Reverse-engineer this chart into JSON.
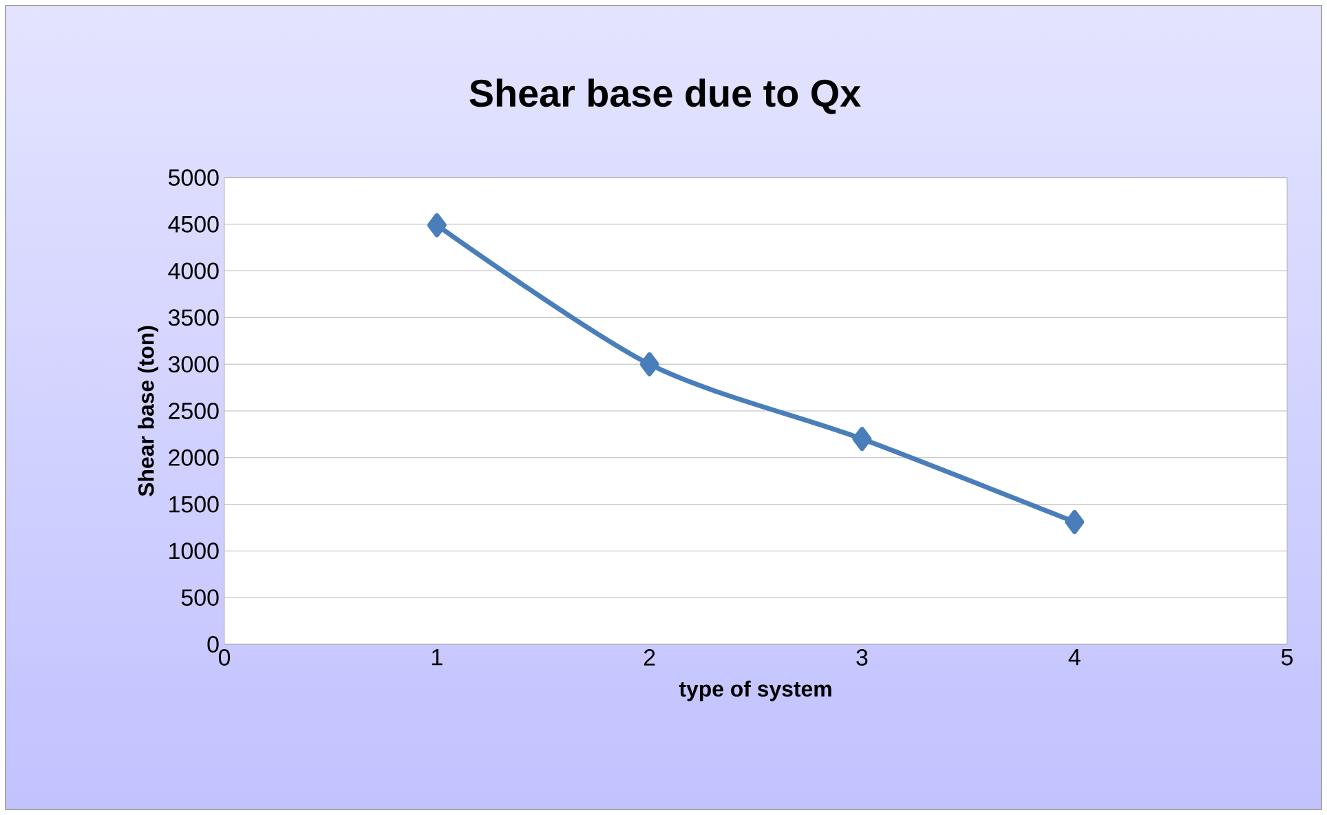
{
  "chart_data": {
    "type": "line",
    "title": "Shear base due to Qx",
    "xlabel": "type of system",
    "ylabel": "Shear base (ton)",
    "x": [
      1,
      2,
      3,
      4
    ],
    "series": [
      {
        "color": "#4a7ebb",
        "values": [
          4490,
          3000,
          2200,
          1310
        ]
      }
    ],
    "xlim": [
      0,
      5
    ],
    "xticks": [
      0,
      1,
      2,
      3,
      4,
      5
    ],
    "ylim": [
      0,
      5000
    ],
    "yticks": [
      0,
      500,
      1000,
      1500,
      2000,
      2500,
      3000,
      3500,
      4000,
      4500,
      5000
    ],
    "grid": "y",
    "marker": "diamond",
    "line_style": "solid"
  }
}
